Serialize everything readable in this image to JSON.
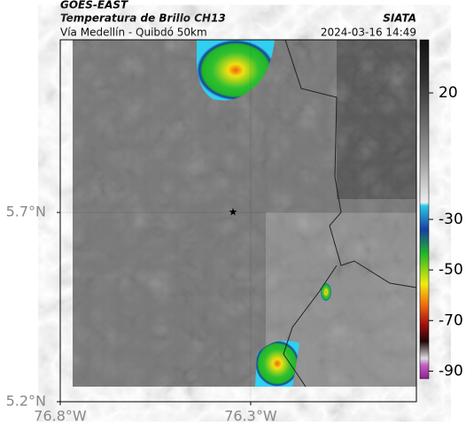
{
  "header": {
    "source": "GOES-EAST",
    "title": "Temperatura de Brillo CH13",
    "subtitle": "Vía Medellín - Quibdó 50km",
    "agency": "SIATA",
    "timestamp": "2024-03-16 14:49"
  },
  "map": {
    "xlim": [
      -76.8,
      -75.865
    ],
    "ylim": [
      5.2,
      6.156
    ],
    "xticks": [
      {
        "value": -76.8,
        "label": "76.8°W"
      },
      {
        "value": -76.3,
        "label": "76.3°W"
      }
    ],
    "yticks": [
      {
        "value": 5.7,
        "label": "5.7°N"
      },
      {
        "value": 5.2,
        "label": "5.2°N"
      }
    ],
    "grid": true
  },
  "colorbar": {
    "lim": [
      41,
      -93
    ],
    "ticks": [
      20,
      -30,
      -50,
      -70,
      -90
    ]
  }
}
